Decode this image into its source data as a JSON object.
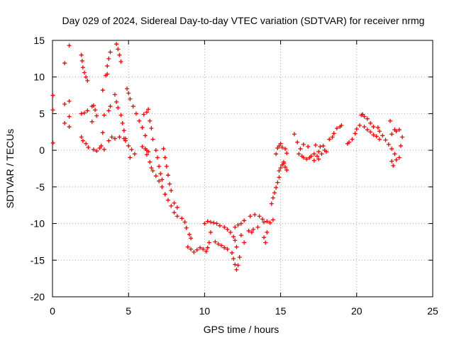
{
  "chart_data": {
    "type": "scatter",
    "title": "Day 029 of 2024, Sidereal Day-to-day VTEC variation (SDTVAR) for receiver nrmg",
    "xlabel": "GPS time / hours",
    "ylabel": "SDTVAR / TECUs",
    "xlim": [
      0,
      25
    ],
    "ylim": [
      -20,
      15
    ],
    "xticks": [
      0,
      5,
      10,
      15,
      20,
      25
    ],
    "yticks": [
      -20,
      -15,
      -10,
      -5,
      0,
      5,
      10,
      15
    ],
    "grid": true,
    "marker": "+",
    "color": "#ff0000",
    "series": [
      {
        "name": "SDTVAR",
        "points": [
          [
            0.02,
            7.5
          ],
          [
            0.02,
            5.5
          ],
          [
            0.03,
            1.0
          ],
          [
            0.8,
            11.9
          ],
          [
            0.8,
            6.3
          ],
          [
            0.8,
            3.7
          ],
          [
            1.1,
            14.3
          ],
          [
            1.1,
            6.7
          ],
          [
            1.1,
            4.6
          ],
          [
            1.1,
            3.2
          ],
          [
            1.9,
            13.0
          ],
          [
            1.95,
            12.2
          ],
          [
            2.0,
            11.3
          ],
          [
            2.1,
            10.6
          ],
          [
            2.2,
            10.0
          ],
          [
            2.3,
            9.5
          ],
          [
            1.9,
            5.0
          ],
          [
            2.1,
            5.1
          ],
          [
            2.3,
            5.4
          ],
          [
            1.9,
            1.8
          ],
          [
            2.0,
            1.3
          ],
          [
            2.2,
            0.9
          ],
          [
            2.35,
            0.4
          ],
          [
            2.6,
            6.0
          ],
          [
            2.7,
            6.1
          ],
          [
            2.8,
            5.5
          ],
          [
            2.9,
            4.7
          ],
          [
            2.6,
            3.9
          ],
          [
            2.7,
            0.1
          ],
          [
            2.9,
            -0.1
          ],
          [
            3.1,
            0.3
          ],
          [
            3.2,
            0.6
          ],
          [
            3.4,
            0.1
          ],
          [
            3.3,
            8.2
          ],
          [
            3.5,
            10.2
          ],
          [
            3.6,
            11.5
          ],
          [
            3.7,
            12.5
          ],
          [
            3.8,
            13.4
          ],
          [
            3.6,
            10.4
          ],
          [
            3.7,
            5.4
          ],
          [
            3.8,
            6.0
          ],
          [
            3.4,
            4.8
          ],
          [
            3.3,
            2.4
          ],
          [
            3.7,
            1.3
          ],
          [
            3.9,
            1.8
          ],
          [
            4.1,
            1.6
          ],
          [
            4.4,
            1.8
          ],
          [
            4.7,
            1.6
          ],
          [
            4.2,
            14.5
          ],
          [
            4.3,
            13.8
          ],
          [
            4.4,
            13.0
          ],
          [
            4.5,
            12.1
          ],
          [
            4.1,
            7.6
          ],
          [
            4.2,
            6.6
          ],
          [
            4.3,
            5.8
          ],
          [
            4.5,
            4.8
          ],
          [
            4.6,
            3.7
          ],
          [
            4.7,
            2.7
          ],
          [
            4.8,
            1.6
          ],
          [
            4.9,
            8.4
          ],
          [
            5.0,
            7.8
          ],
          [
            5.1,
            7.0
          ],
          [
            5.3,
            6.0
          ],
          [
            5.5,
            5.0
          ],
          [
            5.7,
            4.0
          ],
          [
            5.9,
            3.1
          ],
          [
            6.1,
            2.0
          ],
          [
            4.8,
            1.3
          ],
          [
            5.0,
            0.6
          ],
          [
            5.2,
            0.1
          ],
          [
            5.4,
            -0.5
          ],
          [
            5.1,
            -1.0
          ],
          [
            5.9,
            0.5
          ],
          [
            6.1,
            0.2
          ],
          [
            6.2,
            0.0
          ],
          [
            6.3,
            -0.2
          ],
          [
            6.2,
            -0.6
          ],
          [
            6.4,
            -1.6
          ],
          [
            6.5,
            -2.4
          ],
          [
            6.0,
            4.9
          ],
          [
            6.2,
            5.2
          ],
          [
            6.3,
            5.6
          ],
          [
            6.4,
            4.0
          ],
          [
            6.5,
            3.0
          ],
          [
            6.6,
            1.5
          ],
          [
            6.8,
            0.0
          ],
          [
            6.9,
            -1.0
          ],
          [
            7.0,
            -2.2
          ],
          [
            7.1,
            -3.2
          ],
          [
            7.2,
            -4.0
          ],
          [
            7.3,
            0.2
          ],
          [
            7.4,
            -1.0
          ],
          [
            7.5,
            -2.2
          ],
          [
            7.6,
            -3.4
          ],
          [
            7.7,
            -4.6
          ],
          [
            7.8,
            -5.5
          ],
          [
            6.6,
            -2.8
          ],
          [
            6.8,
            -3.5
          ],
          [
            7.0,
            -4.2
          ],
          [
            7.2,
            -5.0
          ],
          [
            7.4,
            -6.0
          ],
          [
            7.6,
            -6.8
          ],
          [
            7.8,
            -7.6
          ],
          [
            8.0,
            -8.5
          ],
          [
            8.2,
            -9.0
          ],
          [
            8.0,
            -7.2
          ],
          [
            8.2,
            -7.8
          ],
          [
            8.5,
            -9.3
          ],
          [
            8.7,
            -9.8
          ],
          [
            8.8,
            -10.6
          ],
          [
            9.0,
            -11.5
          ],
          [
            9.1,
            -12.0
          ],
          [
            8.9,
            -13.2
          ],
          [
            9.1,
            -13.5
          ],
          [
            9.3,
            -13.9
          ],
          [
            9.5,
            -13.6
          ],
          [
            9.7,
            -13.3
          ],
          [
            9.9,
            -13.5
          ],
          [
            10.1,
            -13.8
          ],
          [
            10.2,
            -13.3
          ],
          [
            10.3,
            -12.6
          ],
          [
            10.4,
            -11.2
          ],
          [
            10.0,
            -10.0
          ],
          [
            10.2,
            -9.7
          ],
          [
            10.4,
            -9.8
          ],
          [
            10.6,
            -9.9
          ],
          [
            10.8,
            -10.0
          ],
          [
            11.0,
            -10.3
          ],
          [
            10.7,
            -12.5
          ],
          [
            10.9,
            -12.8
          ],
          [
            11.1,
            -13.0
          ],
          [
            11.3,
            -13.3
          ],
          [
            11.5,
            -13.5
          ],
          [
            11.3,
            -10.5
          ],
          [
            11.5,
            -10.8
          ],
          [
            11.7,
            -11.2
          ],
          [
            11.9,
            -11.8
          ],
          [
            12.0,
            -12.3
          ],
          [
            12.1,
            -13.2
          ],
          [
            11.8,
            -14.0
          ],
          [
            11.9,
            -14.8
          ],
          [
            12.0,
            -15.6
          ],
          [
            12.1,
            -16.3
          ],
          [
            12.2,
            -15.7
          ],
          [
            12.3,
            -14.6
          ],
          [
            12.0,
            -10.5
          ],
          [
            12.2,
            -10.2
          ],
          [
            12.4,
            -10.0
          ],
          [
            12.6,
            -9.6
          ],
          [
            12.4,
            -11.6
          ],
          [
            12.6,
            -12.6
          ],
          [
            12.9,
            -11.0
          ],
          [
            13.1,
            -11.2
          ],
          [
            13.2,
            -10.8
          ],
          [
            13.5,
            -10.5
          ],
          [
            13.0,
            -9.0
          ],
          [
            13.3,
            -8.8
          ],
          [
            13.6,
            -9.0
          ],
          [
            13.8,
            -9.4
          ],
          [
            13.9,
            -9.8
          ],
          [
            14.1,
            -9.7
          ],
          [
            13.9,
            -11.9
          ],
          [
            14.0,
            -12.6
          ],
          [
            14.1,
            -11.2
          ],
          [
            14.3,
            -9.9
          ],
          [
            14.5,
            -9.5
          ],
          [
            14.4,
            -7.3
          ],
          [
            14.5,
            -6.5
          ],
          [
            14.6,
            -5.8
          ],
          [
            14.7,
            -5.1
          ],
          [
            14.8,
            -4.4
          ],
          [
            14.9,
            -3.7
          ],
          [
            14.9,
            -2.8
          ],
          [
            15.0,
            -2.4
          ],
          [
            15.1,
            -2.0
          ],
          [
            15.2,
            -1.8
          ],
          [
            14.7,
            -0.5
          ],
          [
            14.8,
            0.3
          ],
          [
            14.9,
            0.6
          ],
          [
            15.0,
            0.9
          ],
          [
            15.1,
            0.4
          ],
          [
            15.3,
            0.2
          ],
          [
            15.4,
            -0.4
          ],
          [
            15.2,
            -1.6
          ],
          [
            15.3,
            -2.3
          ],
          [
            15.4,
            -2.7
          ],
          [
            15.9,
            2.2
          ],
          [
            16.1,
            1.1
          ],
          [
            16.3,
            0.2
          ],
          [
            16.4,
            -0.8
          ],
          [
            16.2,
            -0.5
          ],
          [
            16.5,
            -1.0
          ],
          [
            16.7,
            -1.2
          ],
          [
            16.9,
            -1.0
          ],
          [
            17.0,
            -0.8
          ],
          [
            17.2,
            -0.5
          ],
          [
            17.4,
            -0.8
          ],
          [
            17.5,
            -0.2
          ],
          [
            17.6,
            0.5
          ],
          [
            17.8,
            0.6
          ],
          [
            17.9,
            0.0
          ],
          [
            18.0,
            -0.2
          ],
          [
            17.2,
            -1.4
          ],
          [
            17.5,
            -1.2
          ],
          [
            16.5,
            0.8
          ],
          [
            16.8,
            0.5
          ],
          [
            17.3,
            0.7
          ],
          [
            17.7,
            -0.5
          ],
          [
            18.2,
            1.5
          ],
          [
            18.4,
            1.8
          ],
          [
            18.5,
            2.3
          ],
          [
            18.7,
            3.0
          ],
          [
            18.9,
            3.2
          ],
          [
            19.0,
            3.4
          ],
          [
            19.4,
            0.9
          ],
          [
            19.5,
            1.1
          ],
          [
            19.7,
            1.5
          ],
          [
            19.9,
            2.3
          ],
          [
            20.0,
            2.9
          ],
          [
            20.2,
            3.4
          ],
          [
            20.3,
            4.8
          ],
          [
            20.4,
            4.9
          ],
          [
            20.5,
            4.6
          ],
          [
            20.7,
            4.3
          ],
          [
            20.9,
            3.7
          ],
          [
            21.1,
            3.2
          ],
          [
            20.5,
            3.2
          ],
          [
            20.7,
            2.8
          ],
          [
            20.9,
            2.5
          ],
          [
            21.1,
            2.1
          ],
          [
            21.3,
            1.9
          ],
          [
            21.5,
            1.5
          ],
          [
            21.4,
            3.1
          ],
          [
            21.5,
            2.6
          ],
          [
            21.7,
            2.0
          ],
          [
            21.9,
            1.4
          ],
          [
            22.1,
            0.8
          ],
          [
            22.3,
            0.2
          ],
          [
            22.5,
            -0.5
          ],
          [
            22.2,
            4.0
          ],
          [
            22.3,
            2.2
          ],
          [
            22.5,
            2.8
          ],
          [
            22.3,
            -1.5
          ],
          [
            22.4,
            -2.1
          ],
          [
            22.6,
            -1.3
          ],
          [
            22.8,
            -1.0
          ],
          [
            22.9,
            0.6
          ],
          [
            23.0,
            1.8
          ],
          [
            22.8,
            2.8
          ],
          [
            22.6,
            2.6
          ]
        ]
      }
    ]
  }
}
